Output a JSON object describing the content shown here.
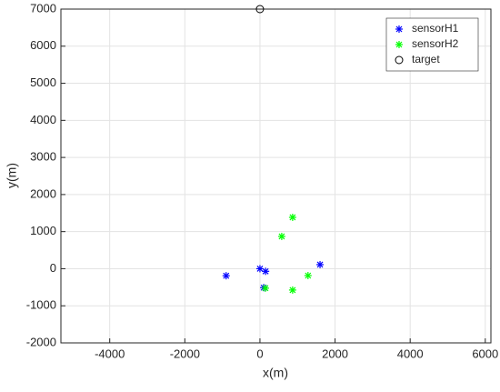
{
  "chart_data": {
    "type": "scatter",
    "xlabel": "x(m)",
    "ylabel": "y(m)",
    "xlim": [
      -5300,
      6150
    ],
    "ylim": [
      -2000,
      7000
    ],
    "xticks": [
      -4000,
      -2000,
      0,
      2000,
      4000,
      6000
    ],
    "yticks": [
      -2000,
      -1000,
      0,
      1000,
      2000,
      3000,
      4000,
      5000,
      6000,
      7000
    ],
    "grid": true,
    "legend": "upper right",
    "series": [
      {
        "name": "sensorH1",
        "color": "#0000ff",
        "marker": "*",
        "x": [
          -900,
          0,
          150,
          100,
          1600
        ],
        "values": [
          -190,
          0,
          -70,
          -510,
          110
        ]
      },
      {
        "name": "sensorH2",
        "color": "#00ff00",
        "marker": "*",
        "x": [
          870,
          580,
          145,
          870,
          1280
        ],
        "values": [
          1385,
          870,
          -525,
          -575,
          -185
        ]
      },
      {
        "name": "target",
        "color": "#000000",
        "marker": "o",
        "x": [
          0
        ],
        "values": [
          7000
        ]
      }
    ]
  }
}
